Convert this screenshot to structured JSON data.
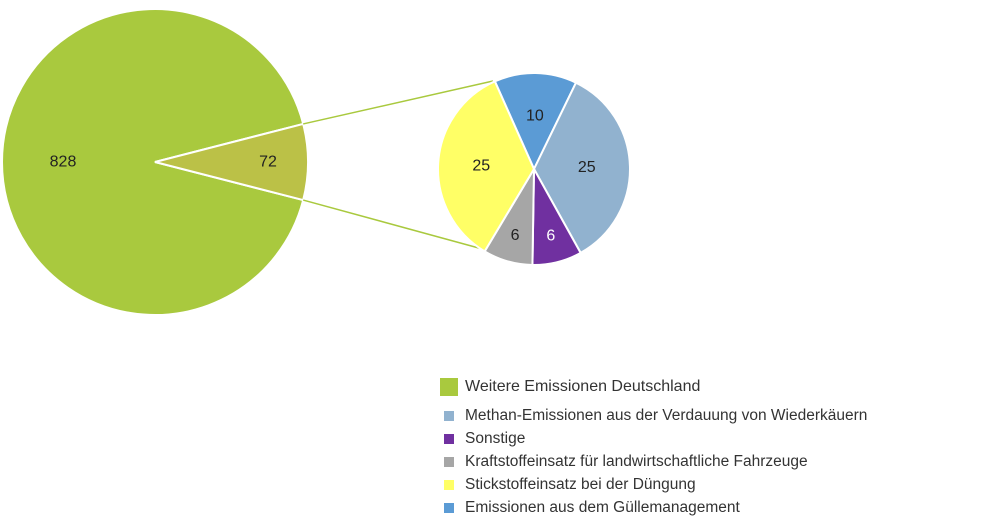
{
  "chart_data": {
    "type": "pie",
    "main_pie": {
      "slices": [
        {
          "name": "Weitere Emissionen Deutschland",
          "value": 828,
          "label": "828",
          "color": "#A9C93E"
        },
        {
          "name": "",
          "value": 72,
          "label": "72",
          "color": "#BBC147"
        }
      ]
    },
    "breakdown_pie": {
      "of_slice": "72",
      "slices": [
        {
          "name": "Emissionen aus dem Güllemanagement",
          "value": 10,
          "label": "10",
          "color": "#5B9BD5"
        },
        {
          "name": "Methan-Emissionen aus der Verdauung von Wiederkäuern",
          "value": 25,
          "label": "25",
          "color": "#91B2CF"
        },
        {
          "name": "Sonstige",
          "value": 6,
          "label": "6",
          "color": "#7030A0"
        },
        {
          "name": "Kraftstoffeinsatz für landwirtschaftliche Fahrzeuge",
          "value": 6,
          "label": "6",
          "color": "#A6A6A6"
        },
        {
          "name": "Stickstoffeinsatz bei der Düngung",
          "value": 25,
          "label": "25",
          "color": "#FFFF66"
        }
      ]
    },
    "legend": {
      "placement": "bottom-right",
      "items": [
        {
          "label": "Weitere Emissionen Deutschland",
          "color": "#A9C93E"
        },
        {
          "label": "Methan-Emissionen aus der Verdauung von Wiederkäuern",
          "color": "#91B2CF"
        },
        {
          "label": "Sonstige",
          "color": "#7030A0"
        },
        {
          "label": "Kraftstoffeinsatz für landwirtschaftliche Fahrzeuge",
          "color": "#A6A6A6"
        },
        {
          "label": "Stickstoffeinsatz bei der Düngung",
          "color": "#FFFF66"
        },
        {
          "label": "Emissionen aus dem Güllemanagement",
          "color": "#5B9BD5"
        }
      ]
    }
  }
}
